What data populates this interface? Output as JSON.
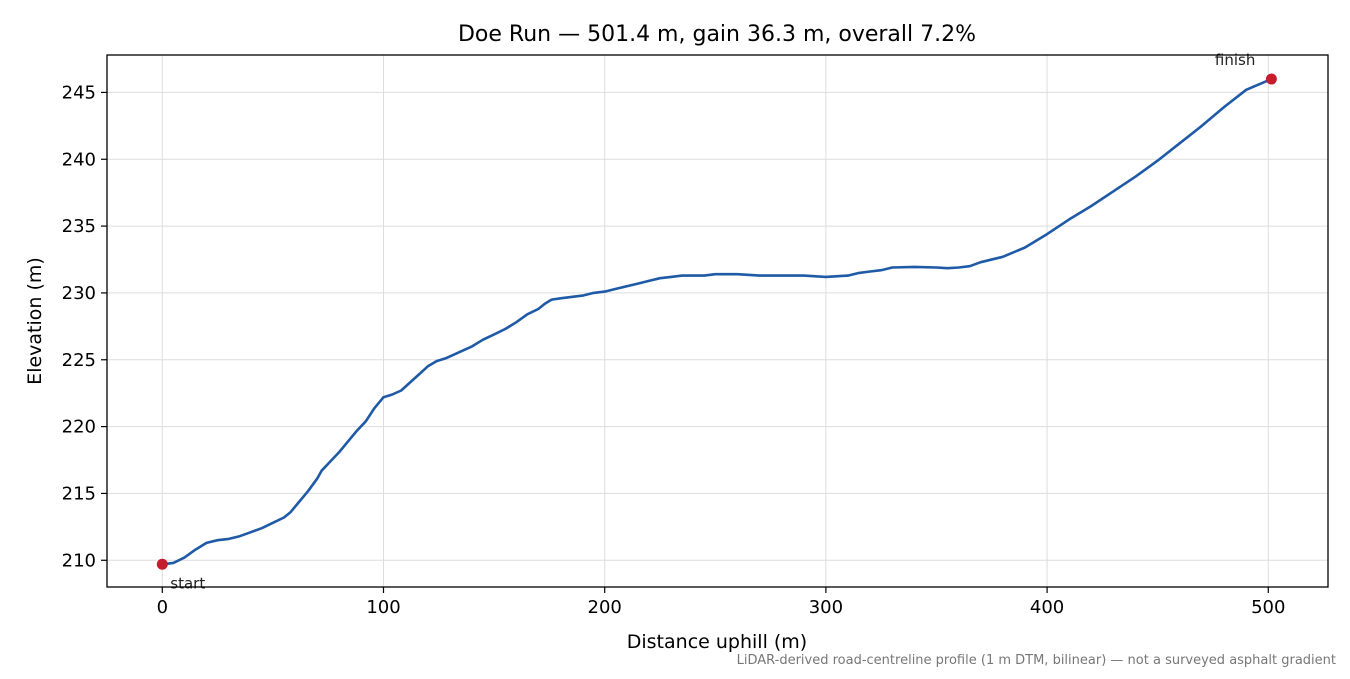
{
  "chart_data": {
    "type": "line",
    "title": "Doe Run — 501.4 m, gain 36.3 m, overall 7.2%",
    "xlabel": "Distance uphill (m)",
    "ylabel": "Elevation (m)",
    "footnote": "LiDAR-derived road-centreline profile (1 m DTM, bilinear) — not a surveyed asphalt gradient",
    "xlim": [
      -25,
      527
    ],
    "ylim": [
      208,
      247.8
    ],
    "xticks": [
      0,
      100,
      200,
      300,
      400,
      500
    ],
    "yticks": [
      210,
      215,
      220,
      225,
      230,
      235,
      240,
      245
    ],
    "grid": true,
    "series": [
      {
        "color": "#1f5aa6",
        "x": [
          0,
          5,
          10,
          15,
          20,
          25,
          30,
          35,
          40,
          45,
          50,
          55,
          58,
          62,
          66,
          70,
          72,
          76,
          80,
          84,
          88,
          92,
          96,
          100,
          104,
          108,
          112,
          116,
          120,
          124,
          128,
          132,
          136,
          140,
          145,
          150,
          155,
          160,
          165,
          170,
          173,
          176,
          180,
          185,
          190,
          195,
          200,
          205,
          210,
          215,
          220,
          225,
          230,
          235,
          240,
          245,
          250,
          260,
          270,
          280,
          290,
          300,
          310,
          315,
          320,
          325,
          330,
          340,
          350,
          355,
          360,
          365,
          370,
          380,
          390,
          400,
          410,
          420,
          430,
          440,
          450,
          460,
          470,
          480,
          490,
          501.4
        ],
        "y": [
          209.7,
          209.8,
          210.2,
          210.8,
          211.3,
          211.5,
          211.6,
          211.8,
          212.1,
          212.4,
          212.8,
          213.2,
          213.6,
          214.4,
          215.2,
          216.1,
          216.7,
          217.4,
          218.1,
          218.9,
          219.7,
          220.4,
          221.4,
          222.2,
          222.4,
          222.7,
          223.3,
          223.9,
          224.5,
          224.9,
          225.1,
          225.4,
          225.7,
          226.0,
          226.5,
          226.9,
          227.3,
          227.8,
          228.4,
          228.8,
          229.2,
          229.5,
          229.6,
          229.7,
          229.8,
          230.0,
          230.1,
          230.3,
          230.5,
          230.7,
          230.9,
          231.1,
          231.2,
          231.3,
          231.3,
          231.3,
          231.4,
          231.4,
          231.3,
          231.3,
          231.3,
          231.2,
          231.3,
          231.5,
          231.6,
          231.7,
          231.9,
          231.95,
          231.9,
          231.85,
          231.9,
          232.0,
          232.3,
          232.7,
          233.4,
          234.4,
          235.5,
          236.5,
          237.6,
          238.7,
          239.9,
          241.2,
          242.5,
          243.9,
          245.2,
          246.0
        ]
      }
    ],
    "annotations": [
      {
        "x": 0,
        "y": 209.7,
        "text": "start",
        "color": "#c41e2e"
      },
      {
        "x": 501.4,
        "y": 246.0,
        "text": "finish",
        "color": "#c41e2e"
      }
    ]
  }
}
